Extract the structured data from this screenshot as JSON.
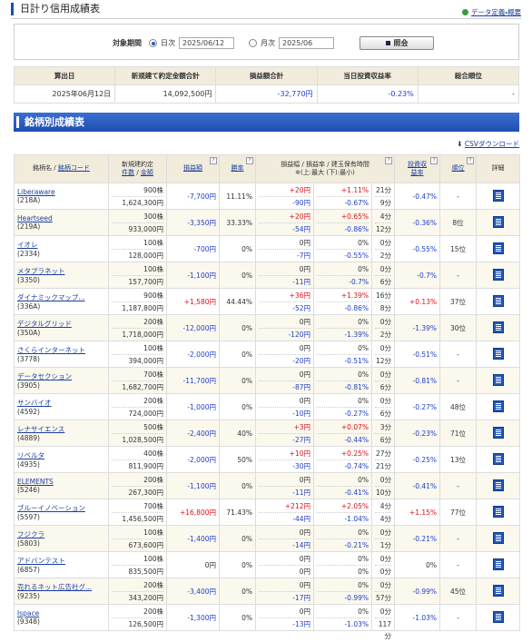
{
  "header": {
    "title": "日計り信用成績表",
    "link": "データ定義・概要"
  },
  "search": {
    "label": "対象期間",
    "daily": "日次",
    "daily_date": "2025/06/12",
    "monthly": "月次",
    "monthly_date": "2025/06",
    "button": "照会"
  },
  "summary": {
    "headers": [
      "算出日",
      "新規建て約定金額合計",
      "損益額合計",
      "当日投資収益率",
      "総合順位"
    ],
    "row": [
      "2025年06月12日",
      "14,092,500円",
      "-32,770円",
      "-0.23%",
      "-"
    ]
  },
  "section_title": "銘柄別成績表",
  "csv_link": "CSVダウンロード",
  "table": {
    "headers": {
      "name": "銘柄名 /",
      "code": "銘柄コード",
      "trade": "新規建約定",
      "count": "件数",
      "sep": "/",
      "amount": "金額",
      "pnl": "損益額",
      "win": "勝率",
      "range": "損益幅 / 損益率 / 建玉保有時間",
      "range_note": "※(上:最大 (下):最小)",
      "return": "投資収益率",
      "rank": "順位",
      "detail": "詳細"
    },
    "rows": [
      {
        "name": "Liberaware",
        "code": "(218A)",
        "shares": "900株",
        "amount": "1,624,300円",
        "pnl": "-7,700円",
        "win": "11.11%",
        "max_width": "+20円",
        "max_rate": "+1.11%",
        "max_time": "21分",
        "min_width": "-90円",
        "min_rate": "-0.67%",
        "min_time": "9分",
        "return": "-0.47%",
        "rank": "-"
      },
      {
        "name": "Heartseed",
        "code": "(219A)",
        "shares": "300株",
        "amount": "933,000円",
        "pnl": "-3,350円",
        "win": "33.33%",
        "max_width": "+20円",
        "max_rate": "+0.65%",
        "max_time": "4分",
        "min_width": "-54円",
        "min_rate": "-0.86%",
        "min_time": "12分",
        "return": "-0.36%",
        "rank": "8位"
      },
      {
        "name": "イオレ",
        "code": "(2334)",
        "shares": "100株",
        "amount": "128,000円",
        "pnl": "-700円",
        "win": "0%",
        "max_width": "0円",
        "max_rate": "0%",
        "max_time": "0分",
        "min_width": "-7円",
        "min_rate": "-0.55%",
        "min_time": "2分",
        "return": "-0.55%",
        "rank": "15位"
      },
      {
        "name": "メタプラネット",
        "code": "(3350)",
        "shares": "100株",
        "amount": "157,700円",
        "pnl": "-1,100円",
        "win": "0%",
        "max_width": "0円",
        "max_rate": "0%",
        "max_time": "0分",
        "min_width": "-11円",
        "min_rate": "-0.7%",
        "min_time": "6分",
        "return": "-0.7%",
        "rank": "-"
      },
      {
        "name": "ダイナミックマップ...",
        "code": "(336A)",
        "shares": "900株",
        "amount": "1,187,800円",
        "pnl": "+1,580円",
        "win": "44.44%",
        "max_width": "+36円",
        "max_rate": "+1.39%",
        "max_time": "16分",
        "min_width": "-52円",
        "min_rate": "-0.86%",
        "min_time": "8分",
        "return": "+0.13%",
        "rank": "37位"
      },
      {
        "name": "デジタルグリッド",
        "code": "(350A)",
        "shares": "200株",
        "amount": "1,718,000円",
        "pnl": "-12,000円",
        "win": "0%",
        "max_width": "0円",
        "max_rate": "0%",
        "max_time": "0分",
        "min_width": "-120円",
        "min_rate": "-1.39%",
        "min_time": "2分",
        "return": "-1.39%",
        "rank": "30位"
      },
      {
        "name": "さくらインターネット",
        "code": "(3778)",
        "shares": "100株",
        "amount": "394,000円",
        "pnl": "-2,000円",
        "win": "0%",
        "max_width": "0円",
        "max_rate": "0%",
        "max_time": "0分",
        "min_width": "-20円",
        "min_rate": "-0.51%",
        "min_time": "12分",
        "return": "-0.51%",
        "rank": "-"
      },
      {
        "name": "データセクション",
        "code": "(3905)",
        "shares": "700株",
        "amount": "1,682,700円",
        "pnl": "-11,700円",
        "win": "0%",
        "max_width": "0円",
        "max_rate": "0%",
        "max_time": "0分",
        "min_width": "-87円",
        "min_rate": "-0.81%",
        "min_time": "6分",
        "return": "-0.81%",
        "rank": "-"
      },
      {
        "name": "サンバイオ",
        "code": "(4592)",
        "shares": "200株",
        "amount": "724,000円",
        "pnl": "-1,000円",
        "win": "0%",
        "max_width": "0円",
        "max_rate": "0%",
        "max_time": "0分",
        "min_width": "-10円",
        "min_rate": "-0.27%",
        "min_time": "6分",
        "return": "-0.27%",
        "rank": "48位"
      },
      {
        "name": "レナサイエンス",
        "code": "(4889)",
        "shares": "500株",
        "amount": "1,028,500円",
        "pnl": "-2,400円",
        "win": "40%",
        "max_width": "+3円",
        "max_rate": "+0.07%",
        "max_time": "3分",
        "min_width": "-27円",
        "min_rate": "-0.44%",
        "min_time": "6分",
        "return": "-0.23%",
        "rank": "71位"
      },
      {
        "name": "リベルタ",
        "code": "(4935)",
        "shares": "400株",
        "amount": "811,900円",
        "pnl": "-2,000円",
        "win": "50%",
        "max_width": "+10円",
        "max_rate": "+0.25%",
        "max_time": "27分",
        "min_width": "-30円",
        "min_rate": "-0.74%",
        "min_time": "21分",
        "return": "-0.25%",
        "rank": "13位"
      },
      {
        "name": "ELEMENTS",
        "code": "(5246)",
        "shares": "200株",
        "amount": "267,300円",
        "pnl": "-1,100円",
        "win": "0%",
        "max_width": "0円",
        "max_rate": "0%",
        "max_time": "0分",
        "min_width": "-11円",
        "min_rate": "-0.41%",
        "min_time": "10分",
        "return": "-0.41%",
        "rank": "-"
      },
      {
        "name": "ブルーイノベーション",
        "code": "(5597)",
        "shares": "700株",
        "amount": "1,456,500円",
        "pnl": "+16,800円",
        "win": "71.43%",
        "max_width": "+212円",
        "max_rate": "+2.05%",
        "max_time": "4分",
        "min_width": "-44円",
        "min_rate": "-1.04%",
        "min_time": "4分",
        "return": "+1.15%",
        "rank": "77位"
      },
      {
        "name": "フジクラ",
        "code": "(5803)",
        "shares": "100株",
        "amount": "673,600円",
        "pnl": "-1,400円",
        "win": "0%",
        "max_width": "0円",
        "max_rate": "0%",
        "max_time": "0分",
        "min_width": "-14円",
        "min_rate": "-0.21%",
        "min_time": "1分",
        "return": "-0.21%",
        "rank": "-"
      },
      {
        "name": "アドバンテスト",
        "code": "(6857)",
        "shares": "100株",
        "amount": "835,500円",
        "pnl": "0円",
        "win": "0%",
        "max_width": "0円",
        "max_rate": "0%",
        "max_time": "0分",
        "min_width": "0円",
        "min_rate": "0%",
        "min_time": "0分",
        "return": "0%",
        "rank": "-"
      },
      {
        "name": "売れるネット広告社グ...",
        "code": "(9235)",
        "shares": "200株",
        "amount": "343,200円",
        "pnl": "-3,400円",
        "win": "0%",
        "max_width": "0円",
        "max_rate": "0%",
        "max_time": "0分",
        "min_width": "-17円",
        "min_rate": "-0.99%",
        "min_time": "57分",
        "return": "-0.99%",
        "rank": "45位"
      },
      {
        "name": "Ispace",
        "code": "(9348)",
        "shares": "200株",
        "amount": "126,500円",
        "pnl": "-1,300円",
        "win": "0%",
        "max_width": "0円",
        "max_rate": "0%",
        "max_time": "0分",
        "min_width": "-13円",
        "min_rate": "-1.03%",
        "min_time": "117分",
        "return": "-1.03%",
        "rank": "-"
      }
    ]
  }
}
